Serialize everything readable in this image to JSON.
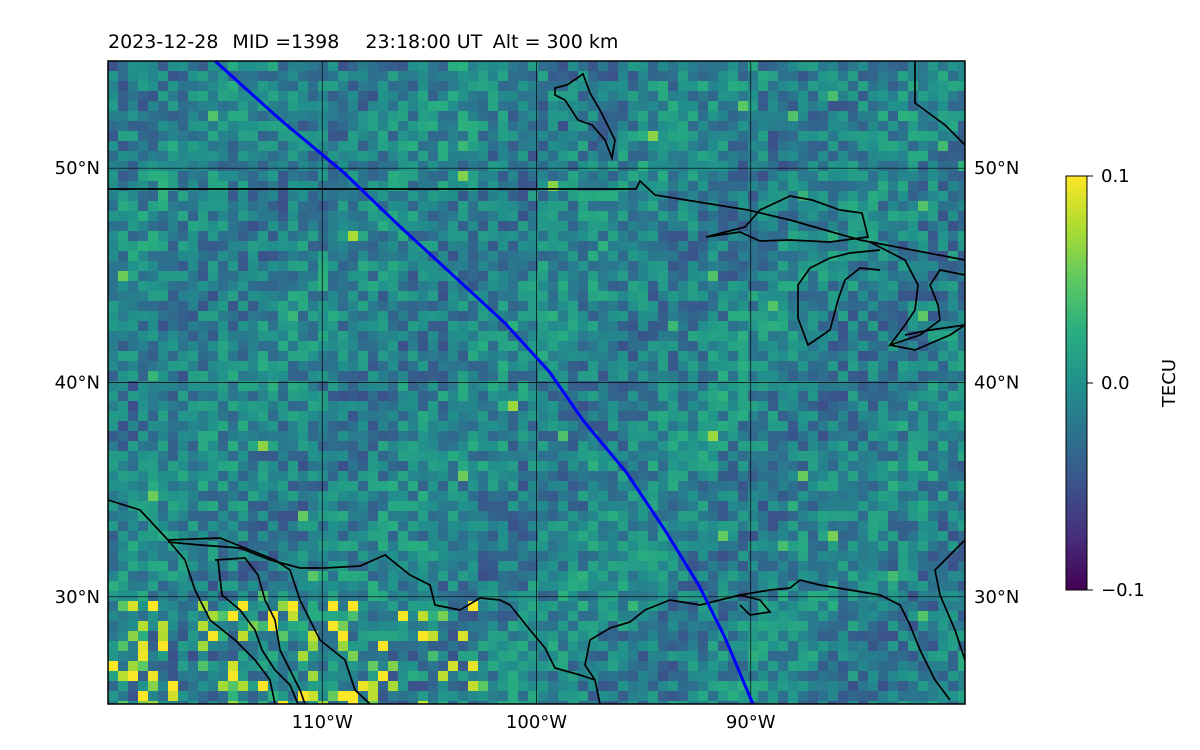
{
  "title": {
    "date": "2023-12-28",
    "mid": "MID =1398",
    "time": "23:18:00  UT",
    "alt": "Alt = 300 km"
  },
  "map": {
    "lon_range": [
      -120,
      -80
    ],
    "lat_range": [
      25,
      55
    ],
    "grid": true,
    "lon_ticks": [
      {
        "value": -110,
        "label": "110°W"
      },
      {
        "value": -100,
        "label": "100°W"
      },
      {
        "value": -90,
        "label": "90°W"
      }
    ],
    "lat_ticks": [
      {
        "value": 50,
        "label": "50°N"
      },
      {
        "value": 40,
        "label": "40°N"
      },
      {
        "value": 30,
        "label": "30°N"
      }
    ],
    "track_color": "#0000ff",
    "track": [
      [
        -115,
        55
      ],
      [
        -112,
        52.3
      ],
      [
        -109,
        49.8
      ],
      [
        -106.4,
        47.3
      ],
      [
        -104,
        45.1
      ],
      [
        -101.5,
        42.8
      ],
      [
        -99.4,
        40.5
      ],
      [
        -97.8,
        38.2
      ],
      [
        -95.8,
        35.8
      ],
      [
        -94,
        33.1
      ],
      [
        -92.4,
        30.5
      ],
      [
        -91.2,
        28.1
      ],
      [
        -89.9,
        25
      ]
    ],
    "coastline_color": "#000000"
  },
  "colorbar": {
    "label": "TECU",
    "colormap": "viridis",
    "vmin": -0.1,
    "vmax": 0.1,
    "ticks": [
      {
        "value": 0.1,
        "label": "0.1"
      },
      {
        "value": 0.0,
        "label": "0.0"
      },
      {
        "value": -0.1,
        "label": "−0.1"
      }
    ]
  }
}
